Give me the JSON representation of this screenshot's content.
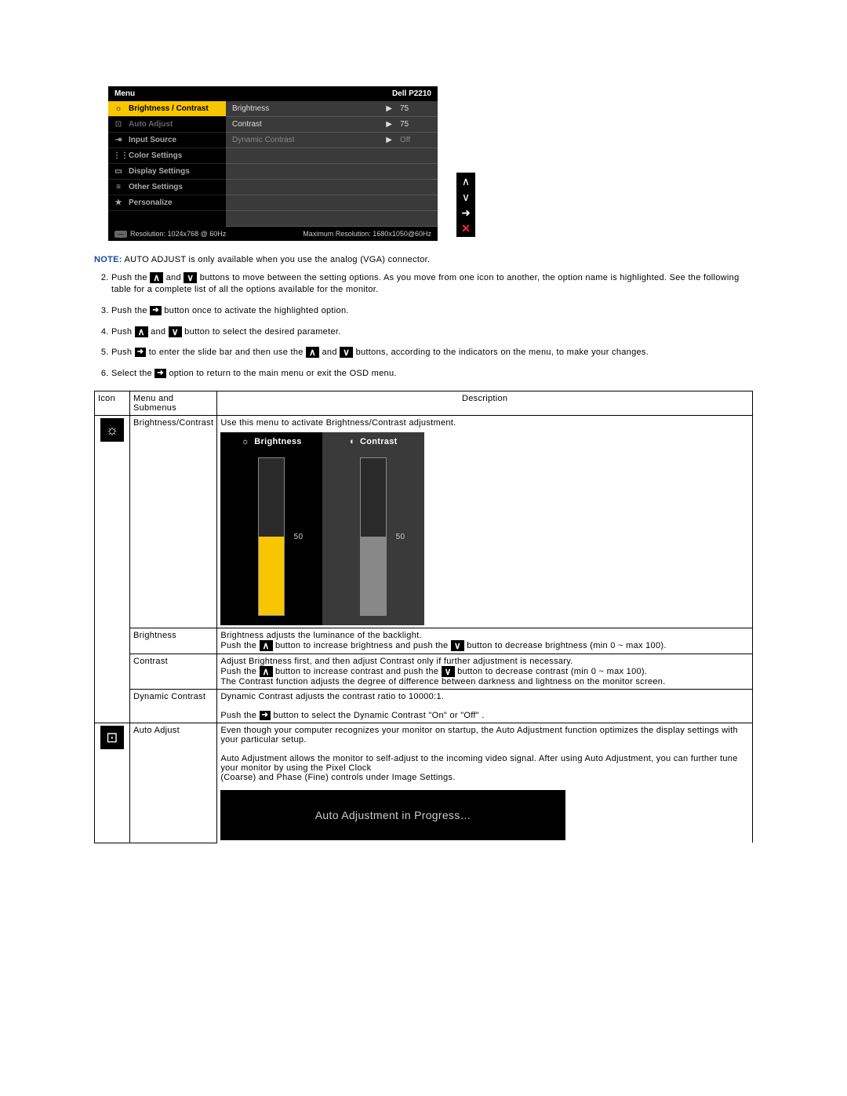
{
  "osd": {
    "menu_label": "Menu",
    "model": "Dell P2210",
    "left_items": [
      {
        "icon": "☼",
        "label": "Brightness / Contrast",
        "selected": true,
        "dim": false
      },
      {
        "icon": "⊡",
        "label": "Auto Adjust",
        "selected": false,
        "dim": true
      },
      {
        "icon": "⇥",
        "label": "Input Source",
        "selected": false,
        "dim": false
      },
      {
        "icon": "⋮⋮",
        "label": "Color Settings",
        "selected": false,
        "dim": false
      },
      {
        "icon": "▭",
        "label": "Display Settings",
        "selected": false,
        "dim": false
      },
      {
        "icon": "≡",
        "label": "Other Settings",
        "selected": false,
        "dim": false
      },
      {
        "icon": "★",
        "label": "Personalize",
        "selected": false,
        "dim": false
      }
    ],
    "right_rows": [
      {
        "label": "Brightness",
        "value": "75",
        "dim": false
      },
      {
        "label": "Contrast",
        "value": "75",
        "dim": false
      },
      {
        "label": "Dynamic Contrast",
        "value": "Off",
        "dim": true
      }
    ],
    "resolution_label": "Resolution: 1024x768 @ 60Hz",
    "max_resolution_label": "Maximum Resolution: 1680x1050@60Hz"
  },
  "note_prefix": "NOTE:",
  "note_text": " AUTO ADJUST is only available when you use the analog (VGA) connector.",
  "steps": {
    "s2a": "Push the ",
    "s2b": " and ",
    "s2c": " buttons to move between the setting options. As you move from one icon to another, the option name is highlighted. See the following table for a complete list of all the options available for the monitor.",
    "s3a": "Push the ",
    "s3b": " button once to activate the highlighted option.",
    "s4a": "Push ",
    "s4b": " and ",
    "s4c": " button to select the desired parameter.",
    "s5a": "Push ",
    "s5b": " to enter the slide bar and then use the ",
    "s5c": " and ",
    "s5d": " buttons, according to the indicators on the menu, to make your changes.",
    "s6a": "Select the ",
    "s6b": " option to return to the main menu or exit the OSD menu."
  },
  "table_headers": {
    "icon": "Icon",
    "menu": "Menu and Submenus",
    "desc": "Description"
  },
  "bc": {
    "menu_name": "Brightness/Contrast",
    "intro": "Use this menu to activate Brightness/Contrast adjustment.",
    "brightness_label": "Brightness",
    "contrast_label": "Contrast",
    "brightness_value": "50",
    "contrast_value": "50",
    "brightness_fill_percent": 50,
    "contrast_fill_percent": 50,
    "brightness_color": "#f7c600",
    "contrast_color": "#888888"
  },
  "brightness_row": {
    "name": "Brightness",
    "l1": "Brightness adjusts the luminance of the backlight.",
    "l2a": "Push the ",
    "l2b": " button to increase brightness and push the ",
    "l2c": " button to decrease brightness (min 0 ~ max 100)."
  },
  "contrast_row": {
    "name": "Contrast",
    "l1": "Adjust Brightness first, and then adjust Contrast only if further adjustment is necessary.",
    "l2a": "Push the ",
    "l2b": " button to increase contrast and push the ",
    "l2c": " button to decrease contrast (min 0 ~ max 100).",
    "l3": "The Contrast function adjusts the degree of difference between darkness and lightness on the monitor screen."
  },
  "dyncon_row": {
    "name": "Dynamic Contrast",
    "l1": "Dynamic Contrast adjusts the contrast ratio to 10000:1.",
    "l2a": "Push the ",
    "l2b": " button to select the Dynamic Contrast \"On\" or \"Off\" ."
  },
  "auto_row": {
    "name": "Auto Adjust",
    "p1": "Even though your computer recognizes your monitor on startup, the Auto Adjustment function optimizes the display settings with your particular setup.",
    "p2": "Auto Adjustment allows the monitor to self-adjust to the incoming video signal. After using Auto Adjustment, you can further tune your monitor by using the Pixel Clock",
    "p3": "(Coarse) and Phase (Fine) controls under Image Settings.",
    "progress": "Auto Adjustment in Progress…"
  },
  "glyphs": {
    "up": "∧",
    "down": "∨",
    "right": "➜",
    "enter": "➜",
    "play": "▶"
  }
}
